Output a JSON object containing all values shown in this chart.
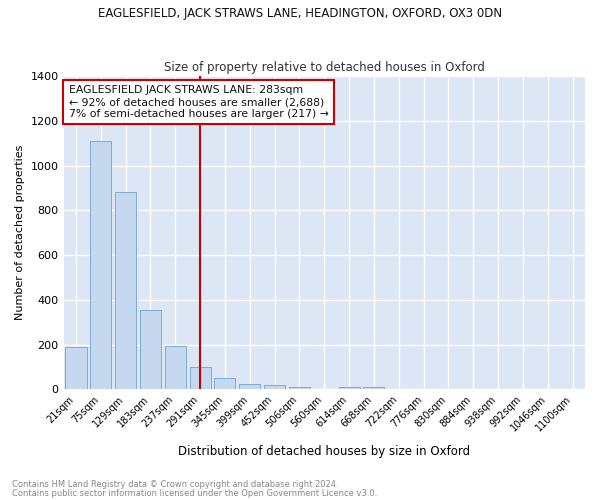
{
  "title1": "EAGLESFIELD, JACK STRAWS LANE, HEADINGTON, OXFORD, OX3 0DN",
  "title2": "Size of property relative to detached houses in Oxford",
  "xlabel": "Distribution of detached houses by size in Oxford",
  "ylabel": "Number of detached properties",
  "categories": [
    "21sqm",
    "75sqm",
    "129sqm",
    "183sqm",
    "237sqm",
    "291sqm",
    "345sqm",
    "399sqm",
    "452sqm",
    "506sqm",
    "560sqm",
    "614sqm",
    "668sqm",
    "722sqm",
    "776sqm",
    "830sqm",
    "884sqm",
    "938sqm",
    "992sqm",
    "1046sqm",
    "1100sqm"
  ],
  "values": [
    190,
    1110,
    880,
    355,
    195,
    100,
    50,
    25,
    20,
    12,
    0,
    12,
    12,
    0,
    0,
    0,
    0,
    0,
    0,
    0,
    0
  ],
  "bar_color": "#c5d8f0",
  "bar_edge_color": "#7aadd4",
  "vline_x_index": 5,
  "vline_color": "#cc0000",
  "annotation_text": "EAGLESFIELD JACK STRAWS LANE: 283sqm\n← 92% of detached houses are smaller (2,688)\n7% of semi-detached houses are larger (217) →",
  "annotation_box_color": "#ffffff",
  "annotation_box_edge": "#cc0000",
  "ylim": [
    0,
    1400
  ],
  "yticks": [
    0,
    200,
    400,
    600,
    800,
    1000,
    1200,
    1400
  ],
  "plot_bg_color": "#dce6f5",
  "grid_color": "#ffffff",
  "fig_bg_color": "#ffffff",
  "footer1": "Contains HM Land Registry data © Crown copyright and database right 2024.",
  "footer2": "Contains public sector information licensed under the Open Government Licence v3.0."
}
